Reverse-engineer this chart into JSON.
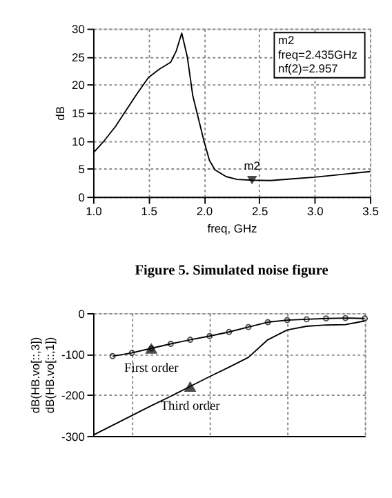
{
  "chart_data": [
    {
      "type": "line",
      "xlabel": "freq, GHz",
      "ylabel": "dB",
      "x": [
        1.0,
        1.1,
        1.2,
        1.3,
        1.4,
        1.5,
        1.6,
        1.7,
        1.75,
        1.8,
        1.85,
        1.9,
        1.95,
        2.0,
        2.05,
        2.1,
        2.2,
        2.3,
        2.435,
        2.6,
        2.8,
        3.0,
        3.2,
        3.5
      ],
      "series": [
        {
          "color": "#000000",
          "values": [
            7.8,
            10,
            12.5,
            15.5,
            18.5,
            21.3,
            22.8,
            24,
            26,
            29.2,
            25,
            18,
            14,
            10,
            6.5,
            4.8,
            3.6,
            3.1,
            2.957,
            2.9,
            3.2,
            3.5,
            3.9,
            4.5
          ]
        }
      ],
      "xlim": [
        1.0,
        3.5
      ],
      "xticks": [
        {
          "value": 1.0,
          "label": "1.0"
        },
        {
          "value": 1.5,
          "label": "1.5"
        },
        {
          "value": 2.0,
          "label": "2.0"
        },
        {
          "value": 2.5,
          "label": "2.5"
        },
        {
          "value": 3.0,
          "label": "3.0"
        },
        {
          "value": 3.5,
          "label": "3.5"
        }
      ],
      "ylim": [
        0,
        30
      ],
      "yticks": [
        0,
        5,
        10,
        15,
        20,
        25,
        30
      ],
      "grid": true,
      "marker": "none",
      "line_style": "solid",
      "annotations": [
        {
          "text": "m2",
          "x": 2.435,
          "y": 2.957
        },
        "m2\nfreq=2.435GHz\nnf(2)=2.957",
        "Figure 5. Simulated noise figure"
      ]
    },
    {
      "type": "line",
      "ylabel": "dB(HB.vo[::,3])\ndB(HB.vo[::,1])",
      "categories": [
        null,
        null,
        null,
        null,
        null,
        null,
        null,
        null,
        null,
        null,
        null,
        null,
        null,
        null,
        null
      ],
      "series": [
        {
          "color": "#000000",
          "marker": "circle",
          "values": [
            null,
            -105,
            -97,
            -86,
            -75,
            -65,
            -56,
            -46,
            -34,
            -22,
            -17,
            -15,
            -13,
            -12,
            -13
          ]
        },
        {
          "color": "#000000",
          "marker": "none",
          "values": [
            -298,
            -274,
            -250,
            -226,
            -203,
            -179,
            -155,
            -132,
            -108,
            -65,
            -41,
            -32,
            -29,
            -28,
            -19
          ]
        }
      ],
      "ylim": [
        -300,
        0
      ],
      "yticks": [
        {
          "value": 0,
          "label": "0"
        },
        {
          "value": -100,
          "label": "-100"
        },
        {
          "value": -200,
          "label": "-200"
        },
        {
          "value": -300,
          "label": "-300"
        }
      ],
      "grid": true,
      "tick_labels": "y",
      "line_style": "solid",
      "annotations": [
        "First order",
        "Third order"
      ]
    }
  ]
}
